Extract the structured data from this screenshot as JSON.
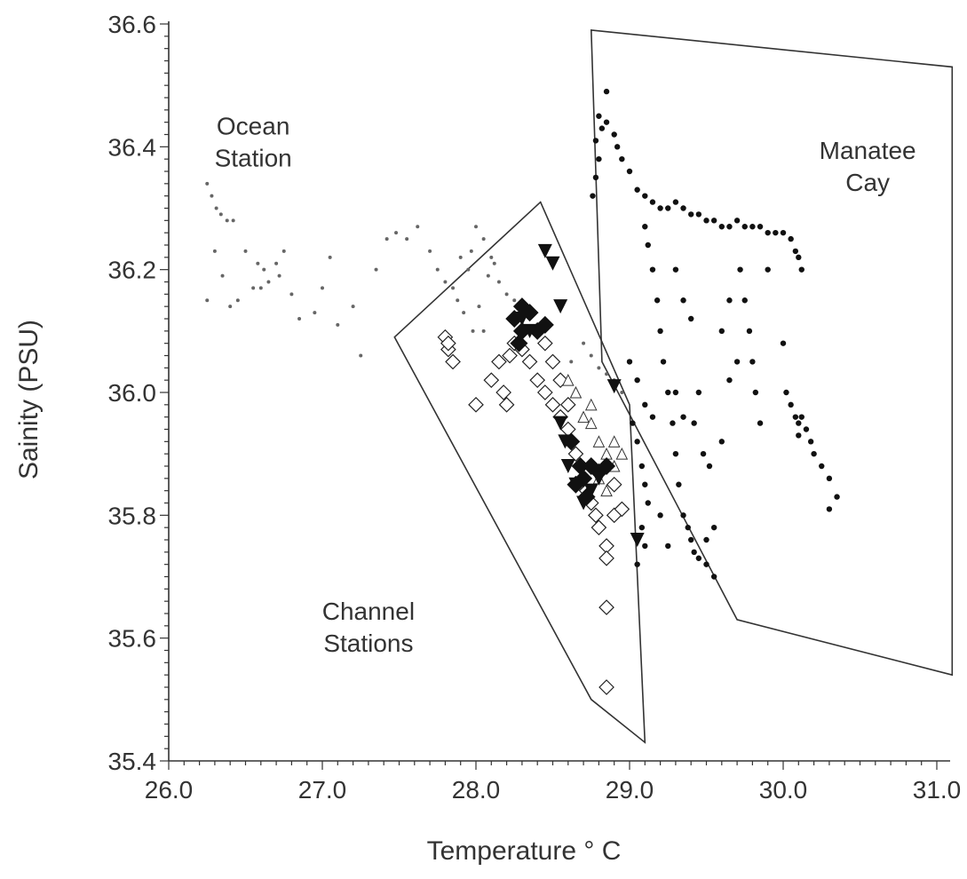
{
  "chart_data": {
    "type": "scatter",
    "title": "",
    "xlabel": "Temperature ° C",
    "ylabel": "Sainity (PSU)",
    "xlim": [
      26.0,
      31.0
    ],
    "ylim": [
      35.4,
      36.6
    ],
    "x_ticks": [
      "26.0",
      "27.0",
      "28.0",
      "29.0",
      "30.0",
      "31.0"
    ],
    "y_ticks": [
      "35.4",
      "35.6",
      "35.8",
      "36.0",
      "36.2",
      "36.4",
      "36.6"
    ],
    "grid": false,
    "annotations": [
      {
        "lines": [
          "Ocean",
          "Station"
        ],
        "x": 26.55,
        "y": 36.42
      },
      {
        "lines": [
          "Manatee",
          "Cay"
        ],
        "x": 30.55,
        "y": 36.38
      },
      {
        "lines": [
          "Channel",
          "Stations"
        ],
        "x": 27.3,
        "y": 35.63
      }
    ],
    "regions": [
      {
        "label": "Channel Stations",
        "points": [
          [
            27.47,
            36.09
          ],
          [
            28.42,
            36.31
          ],
          [
            29.0,
            35.98
          ],
          [
            29.1,
            35.43
          ],
          [
            28.75,
            35.5
          ]
        ]
      },
      {
        "label": "Manatee Cay",
        "points": [
          [
            28.75,
            36.59
          ],
          [
            31.1,
            36.53
          ],
          [
            31.1,
            35.54
          ],
          [
            29.7,
            35.63
          ],
          [
            28.82,
            36.05
          ]
        ]
      }
    ],
    "series": [
      {
        "marker": "small-dot",
        "points": [
          [
            26.25,
            36.34
          ],
          [
            26.28,
            36.32
          ],
          [
            26.31,
            36.3
          ],
          [
            26.34,
            36.29
          ],
          [
            26.38,
            36.28
          ],
          [
            26.3,
            36.23
          ],
          [
            26.42,
            36.28
          ],
          [
            26.5,
            36.23
          ],
          [
            26.58,
            36.21
          ],
          [
            26.62,
            36.2
          ],
          [
            26.65,
            36.18
          ],
          [
            26.7,
            36.21
          ],
          [
            26.72,
            36.19
          ],
          [
            26.6,
            36.17
          ],
          [
            26.35,
            36.19
          ],
          [
            26.45,
            36.15
          ],
          [
            26.55,
            36.17
          ],
          [
            26.8,
            36.16
          ],
          [
            26.85,
            36.12
          ],
          [
            26.95,
            36.13
          ],
          [
            27.0,
            36.17
          ],
          [
            27.05,
            36.22
          ],
          [
            27.1,
            36.11
          ],
          [
            27.2,
            36.14
          ],
          [
            27.25,
            36.06
          ],
          [
            27.35,
            36.2
          ],
          [
            27.42,
            36.25
          ],
          [
            27.48,
            36.26
          ],
          [
            27.55,
            36.25
          ],
          [
            27.62,
            36.27
          ],
          [
            27.7,
            36.23
          ],
          [
            27.75,
            36.2
          ],
          [
            27.8,
            36.18
          ],
          [
            27.85,
            36.17
          ],
          [
            27.9,
            36.22
          ],
          [
            27.95,
            36.2
          ],
          [
            28.0,
            36.27
          ],
          [
            28.05,
            36.25
          ],
          [
            28.1,
            36.22
          ],
          [
            28.15,
            36.18
          ],
          [
            28.2,
            36.16
          ],
          [
            28.25,
            36.15
          ],
          [
            27.88,
            36.15
          ],
          [
            27.92,
            36.13
          ],
          [
            28.02,
            36.14
          ],
          [
            28.08,
            36.19
          ],
          [
            28.12,
            36.21
          ],
          [
            27.97,
            36.23
          ],
          [
            28.05,
            36.1
          ],
          [
            27.98,
            36.1
          ],
          [
            28.75,
            36.06
          ],
          [
            28.8,
            36.04
          ],
          [
            28.85,
            36.03
          ],
          [
            28.9,
            36.02
          ],
          [
            28.95,
            36.0
          ],
          [
            28.7,
            36.08
          ],
          [
            28.62,
            36.05
          ],
          [
            26.25,
            36.15
          ],
          [
            26.4,
            36.14
          ],
          [
            26.75,
            36.23
          ]
        ]
      },
      {
        "marker": "open-diamond",
        "points": [
          [
            27.8,
            36.09
          ],
          [
            27.82,
            36.07
          ],
          [
            27.85,
            36.05
          ],
          [
            27.82,
            36.08
          ],
          [
            28.0,
            35.98
          ],
          [
            28.1,
            36.02
          ],
          [
            28.18,
            36.0
          ],
          [
            28.2,
            35.98
          ],
          [
            28.15,
            36.05
          ],
          [
            28.22,
            36.06
          ],
          [
            28.25,
            36.08
          ],
          [
            28.3,
            36.07
          ],
          [
            28.35,
            36.05
          ],
          [
            28.4,
            36.02
          ],
          [
            28.45,
            36.0
          ],
          [
            28.5,
            35.98
          ],
          [
            28.55,
            35.96
          ],
          [
            28.6,
            35.94
          ],
          [
            28.62,
            35.92
          ],
          [
            28.65,
            35.9
          ],
          [
            28.68,
            35.88
          ],
          [
            28.7,
            35.86
          ],
          [
            28.72,
            35.84
          ],
          [
            28.75,
            35.82
          ],
          [
            28.78,
            35.8
          ],
          [
            28.8,
            35.78
          ],
          [
            28.85,
            35.75
          ],
          [
            28.85,
            35.73
          ],
          [
            28.85,
            35.65
          ],
          [
            28.85,
            35.52
          ],
          [
            28.9,
            35.8
          ],
          [
            28.95,
            35.81
          ],
          [
            28.9,
            35.85
          ],
          [
            28.6,
            35.98
          ],
          [
            28.55,
            36.02
          ],
          [
            28.5,
            36.05
          ],
          [
            28.45,
            36.08
          ]
        ]
      },
      {
        "marker": "open-triangle",
        "points": [
          [
            28.7,
            35.96
          ],
          [
            28.75,
            35.95
          ],
          [
            28.8,
            35.92
          ],
          [
            28.85,
            35.9
          ],
          [
            28.9,
            35.88
          ],
          [
            28.8,
            35.86
          ],
          [
            28.85,
            35.84
          ],
          [
            28.75,
            35.98
          ],
          [
            28.65,
            36.0
          ],
          [
            28.6,
            36.02
          ],
          [
            28.9,
            35.92
          ],
          [
            28.95,
            35.9
          ]
        ]
      },
      {
        "marker": "filled-diamond",
        "points": [
          [
            28.25,
            36.12
          ],
          [
            28.3,
            36.14
          ],
          [
            28.35,
            36.13
          ],
          [
            28.3,
            36.1
          ],
          [
            28.28,
            36.08
          ],
          [
            28.4,
            36.1
          ],
          [
            28.45,
            36.11
          ],
          [
            28.65,
            35.85
          ],
          [
            28.7,
            35.86
          ],
          [
            28.75,
            35.88
          ],
          [
            28.8,
            35.87
          ],
          [
            28.72,
            35.83
          ],
          [
            28.68,
            35.88
          ],
          [
            28.85,
            35.88
          ],
          [
            28.62,
            35.92
          ]
        ]
      },
      {
        "marker": "filled-triangle-down",
        "points": [
          [
            28.45,
            36.23
          ],
          [
            28.5,
            36.21
          ],
          [
            28.55,
            36.14
          ],
          [
            28.9,
            36.01
          ],
          [
            28.55,
            35.95
          ],
          [
            28.58,
            35.92
          ],
          [
            28.6,
            35.88
          ],
          [
            28.65,
            35.85
          ],
          [
            28.7,
            35.82
          ],
          [
            28.75,
            35.84
          ],
          [
            28.8,
            35.86
          ],
          [
            29.05,
            35.76
          ],
          [
            28.3,
            36.12
          ],
          [
            28.35,
            36.1
          ]
        ]
      },
      {
        "marker": "filled-dot",
        "points": [
          [
            28.85,
            36.49
          ],
          [
            28.8,
            36.45
          ],
          [
            28.82,
            36.43
          ],
          [
            28.78,
            36.41
          ],
          [
            28.8,
            36.38
          ],
          [
            28.78,
            36.35
          ],
          [
            28.76,
            36.32
          ],
          [
            28.85,
            36.44
          ],
          [
            28.9,
            36.42
          ],
          [
            28.92,
            36.4
          ],
          [
            28.95,
            36.38
          ],
          [
            29.0,
            36.36
          ],
          [
            29.05,
            36.33
          ],
          [
            29.1,
            36.32
          ],
          [
            29.15,
            36.31
          ],
          [
            29.2,
            36.3
          ],
          [
            29.25,
            36.3
          ],
          [
            29.3,
            36.31
          ],
          [
            29.35,
            36.3
          ],
          [
            29.4,
            36.29
          ],
          [
            29.45,
            36.29
          ],
          [
            29.5,
            36.28
          ],
          [
            29.55,
            36.28
          ],
          [
            29.6,
            36.27
          ],
          [
            29.65,
            36.27
          ],
          [
            29.7,
            36.28
          ],
          [
            29.75,
            36.27
          ],
          [
            29.8,
            36.27
          ],
          [
            29.85,
            36.27
          ],
          [
            29.9,
            36.26
          ],
          [
            29.95,
            36.26
          ],
          [
            30.0,
            36.26
          ],
          [
            30.05,
            36.25
          ],
          [
            30.1,
            36.22
          ],
          [
            30.12,
            36.2
          ],
          [
            29.1,
            36.27
          ],
          [
            29.12,
            36.24
          ],
          [
            29.15,
            36.2
          ],
          [
            29.18,
            36.15
          ],
          [
            29.2,
            36.1
          ],
          [
            29.22,
            36.05
          ],
          [
            29.25,
            36.0
          ],
          [
            29.28,
            35.95
          ],
          [
            29.3,
            35.9
          ],
          [
            29.32,
            35.85
          ],
          [
            29.35,
            35.8
          ],
          [
            29.4,
            35.76
          ],
          [
            29.45,
            35.73
          ],
          [
            29.5,
            35.72
          ],
          [
            29.55,
            35.7
          ],
          [
            29.3,
            36.2
          ],
          [
            29.35,
            36.15
          ],
          [
            29.4,
            36.12
          ],
          [
            29.45,
            36.0
          ],
          [
            29.42,
            35.95
          ],
          [
            29.48,
            35.9
          ],
          [
            29.52,
            35.88
          ],
          [
            29.6,
            35.92
          ],
          [
            29.65,
            36.02
          ],
          [
            29.7,
            36.05
          ],
          [
            29.72,
            36.2
          ],
          [
            29.75,
            36.15
          ],
          [
            29.78,
            36.1
          ],
          [
            29.8,
            36.05
          ],
          [
            29.82,
            36.0
          ],
          [
            29.85,
            35.95
          ],
          [
            29.02,
            35.95
          ],
          [
            29.05,
            35.92
          ],
          [
            29.08,
            35.88
          ],
          [
            29.1,
            35.85
          ],
          [
            29.12,
            35.82
          ],
          [
            29.08,
            35.78
          ],
          [
            29.1,
            35.75
          ],
          [
            29.05,
            35.72
          ],
          [
            29.2,
            35.8
          ],
          [
            29.25,
            35.75
          ],
          [
            29.38,
            35.78
          ],
          [
            29.42,
            35.74
          ],
          [
            29.5,
            35.76
          ],
          [
            29.55,
            35.78
          ],
          [
            30.0,
            36.08
          ],
          [
            30.02,
            36.0
          ],
          [
            30.05,
            35.98
          ],
          [
            30.08,
            35.96
          ],
          [
            30.1,
            35.95
          ],
          [
            30.12,
            35.96
          ],
          [
            30.15,
            35.94
          ],
          [
            30.1,
            35.93
          ],
          [
            30.18,
            35.92
          ],
          [
            30.2,
            35.9
          ],
          [
            30.25,
            35.88
          ],
          [
            30.3,
            35.86
          ],
          [
            30.35,
            35.83
          ],
          [
            30.3,
            35.81
          ],
          [
            29.0,
            36.05
          ],
          [
            29.05,
            36.02
          ],
          [
            29.1,
            35.98
          ],
          [
            29.15,
            35.96
          ],
          [
            29.3,
            36.0
          ],
          [
            29.35,
            35.96
          ],
          [
            29.6,
            36.1
          ],
          [
            29.65,
            36.15
          ],
          [
            29.9,
            36.2
          ],
          [
            30.08,
            36.23
          ]
        ]
      }
    ]
  }
}
